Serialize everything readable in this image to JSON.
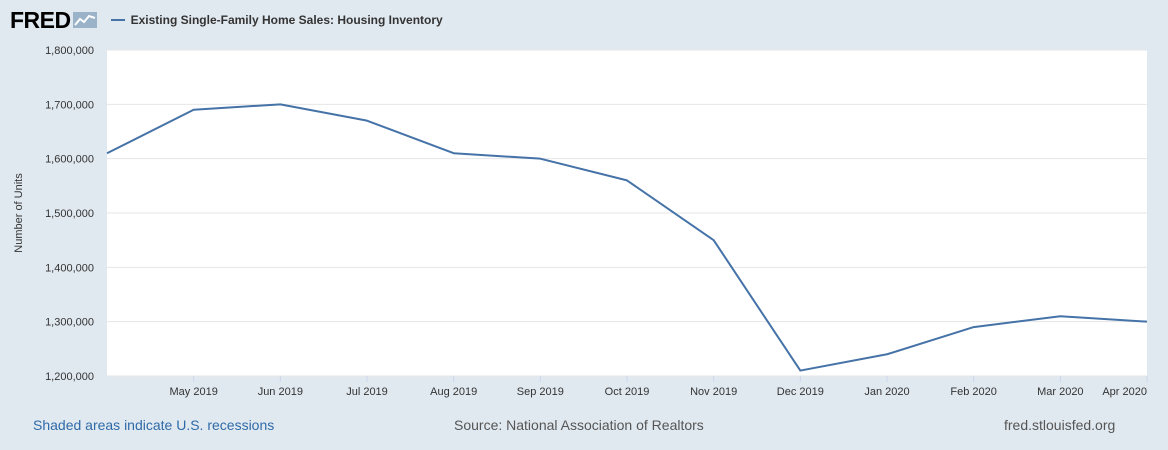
{
  "brand": {
    "logo_text": "FRED"
  },
  "colors": {
    "series": "#4572a7",
    "background": "#e1e9f0",
    "plot_bg": "#ffffff",
    "link": "#2f6aa8"
  },
  "footer": {
    "recession_note": "Shaded areas indicate U.S. recessions",
    "source": "Source: National Association of Realtors",
    "site": "fred.stlouisfed.org"
  },
  "chart_data": {
    "type": "line",
    "title": "Existing Single-Family Home Sales: Housing Inventory",
    "ylabel": "Number of Units",
    "xlabel": "",
    "ylim": [
      1200000,
      1800000
    ],
    "yticks": [
      1200000,
      1300000,
      1400000,
      1500000,
      1600000,
      1700000,
      1800000
    ],
    "ytick_labels": [
      "1,200,000",
      "1,300,000",
      "1,400,000",
      "1,500,000",
      "1,600,000",
      "1,700,000",
      "1,800,000"
    ],
    "x": [
      "Apr 2019",
      "May 2019",
      "Jun 2019",
      "Jul 2019",
      "Aug 2019",
      "Sep 2019",
      "Oct 2019",
      "Nov 2019",
      "Dec 2019",
      "Jan 2020",
      "Feb 2020",
      "Mar 2020",
      "Apr 2020"
    ],
    "xtick_labels": [
      "May 2019",
      "Jun 2019",
      "Jul 2019",
      "Aug 2019",
      "Sep 2019",
      "Oct 2019",
      "Nov 2019",
      "Dec 2019",
      "Jan 2020",
      "Feb 2020",
      "Mar 2020",
      "Apr 2020"
    ],
    "series": [
      {
        "name": "Existing Single-Family Home Sales: Housing Inventory",
        "values": [
          1610000,
          1690000,
          1700000,
          1670000,
          1610000,
          1600000,
          1560000,
          1450000,
          1210000,
          1240000,
          1290000,
          1310000,
          1300000
        ]
      }
    ],
    "grid": true,
    "legend": "top-left"
  }
}
